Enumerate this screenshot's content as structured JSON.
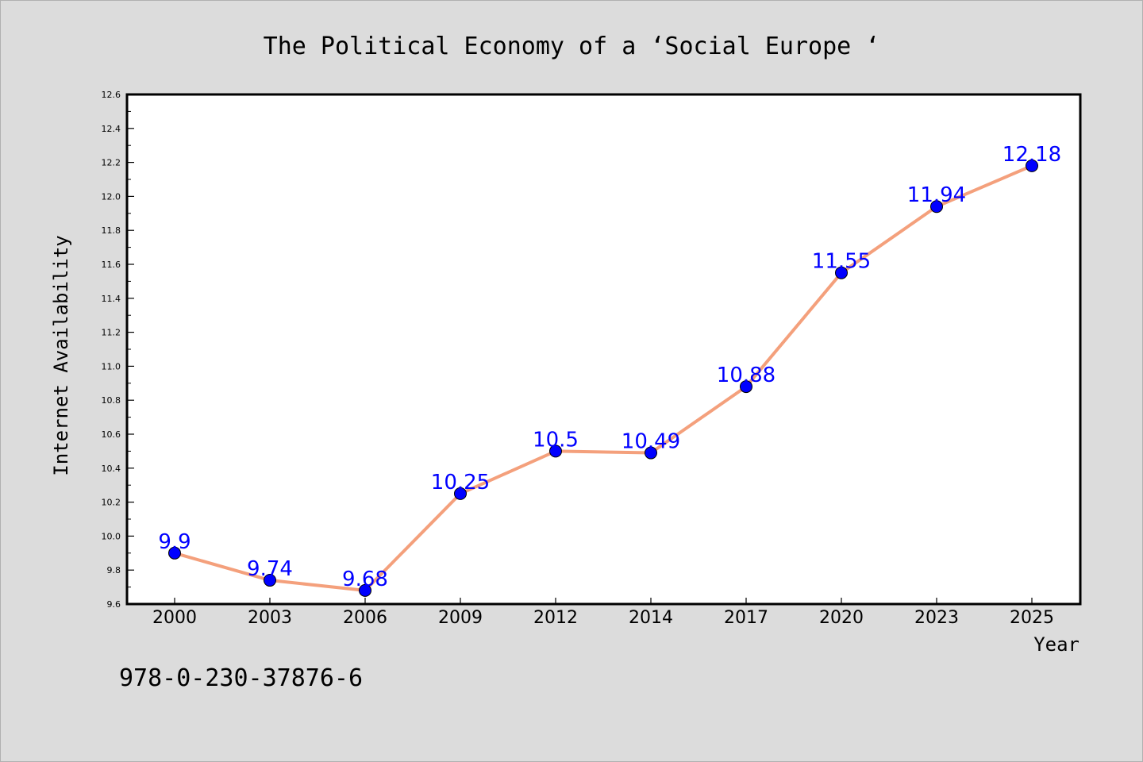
{
  "chart_data": {
    "type": "line",
    "title": "The Political Economy of a  ‘Social Europe ‘",
    "xlabel": "Year",
    "ylabel": "Internet Availability",
    "categories": [
      "2000",
      "2003",
      "2006",
      "2009",
      "2012",
      "2014",
      "2017",
      "2020",
      "2023",
      "2025"
    ],
    "series": [
      {
        "values": [
          9.9,
          9.74,
          9.68,
          10.25,
          10.5,
          10.49,
          10.88,
          11.55,
          11.94,
          12.18
        ],
        "labels": [
          "9.9",
          "9.74",
          "9.68",
          "10.25",
          "10.5",
          "10.49",
          "10.88",
          "11.55",
          "11.94",
          "12.18"
        ],
        "line_color": "#f4a07c",
        "marker_color": "#0000ff"
      }
    ],
    "ylim": [
      9.6,
      12.6
    ],
    "yticks": [
      "9.6",
      "9.8",
      "10.0",
      "10.2",
      "10.4",
      "10.6",
      "10.8",
      "11.0",
      "11.2",
      "11.4",
      "11.6",
      "11.8",
      "12.0",
      "12.2",
      "12.4",
      "12.6"
    ],
    "grid": false,
    "legend": "none"
  },
  "footer": {
    "isbn": "978-0-230-37876-6"
  },
  "colors": {
    "background": "#dcdcdc",
    "plot_background": "#ffffff",
    "label_color": "#0000ff"
  }
}
